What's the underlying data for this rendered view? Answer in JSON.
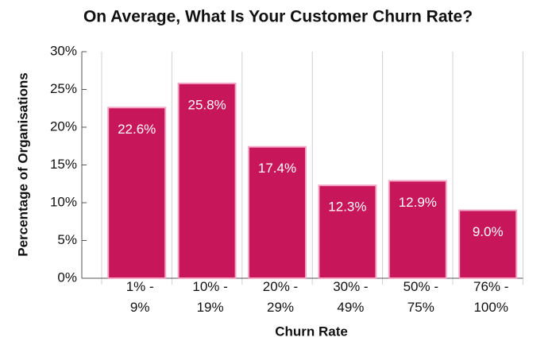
{
  "chart_data": {
    "type": "bar",
    "title": "On Average, What Is Your Customer Churn Rate?",
    "x_label": "Churn Rate",
    "y_label": "Percentage of Organisations",
    "categories": [
      "1% - 9%",
      "10% - 19%",
      "20% - 29%",
      "30% - 49%",
      "50% - 75%",
      "76% - 100%"
    ],
    "values": [
      22.6,
      25.8,
      17.4,
      12.3,
      12.9,
      9.0
    ],
    "value_labels": [
      "22.6%",
      "25.8%",
      "17.4%",
      "12.3%",
      "12.9%",
      "9.0%"
    ],
    "color": "#c8165a",
    "ylim": [
      0,
      30
    ],
    "yticks": [
      {
        "value": 0,
        "label": "0%"
      },
      {
        "value": 5,
        "label": "5%"
      },
      {
        "value": 10,
        "label": "10%"
      },
      {
        "value": 15,
        "label": "15%"
      },
      {
        "value": 20,
        "label": "20%"
      },
      {
        "value": 25,
        "label": "25%"
      },
      {
        "value": 30,
        "label": "30%"
      }
    ]
  }
}
